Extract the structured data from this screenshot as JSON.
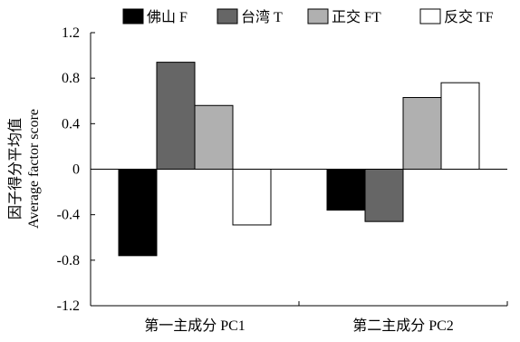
{
  "chart_data": {
    "type": "bar",
    "categories": [
      "第一主成分 PC1",
      "第二主成分 PC2"
    ],
    "series": [
      {
        "name": "佛山 F",
        "values": [
          -0.76,
          -0.36
        ],
        "color": "#000000"
      },
      {
        "name": "台湾 T",
        "values": [
          0.94,
          -0.46
        ],
        "color": "#666666"
      },
      {
        "name": "正交 FT",
        "values": [
          0.56,
          0.63
        ],
        "color": "#b0b0b0"
      },
      {
        "name": "反交 TF",
        "values": [
          -0.49,
          0.76
        ],
        "color": "#ffffff"
      }
    ],
    "ylabel_lines": [
      "因子得分平均值",
      "Average factor score"
    ],
    "ylim": [
      -1.2,
      1.2
    ],
    "yticks": [
      1.2,
      0.8,
      0.4,
      0,
      -0.4,
      -0.8,
      -1.2
    ],
    "ytick_labels": [
      "1.2",
      "0.8",
      "0.4",
      "0",
      "-0.4",
      "-0.8",
      "-1.2"
    ],
    "grid": false,
    "legend_position": "top"
  }
}
